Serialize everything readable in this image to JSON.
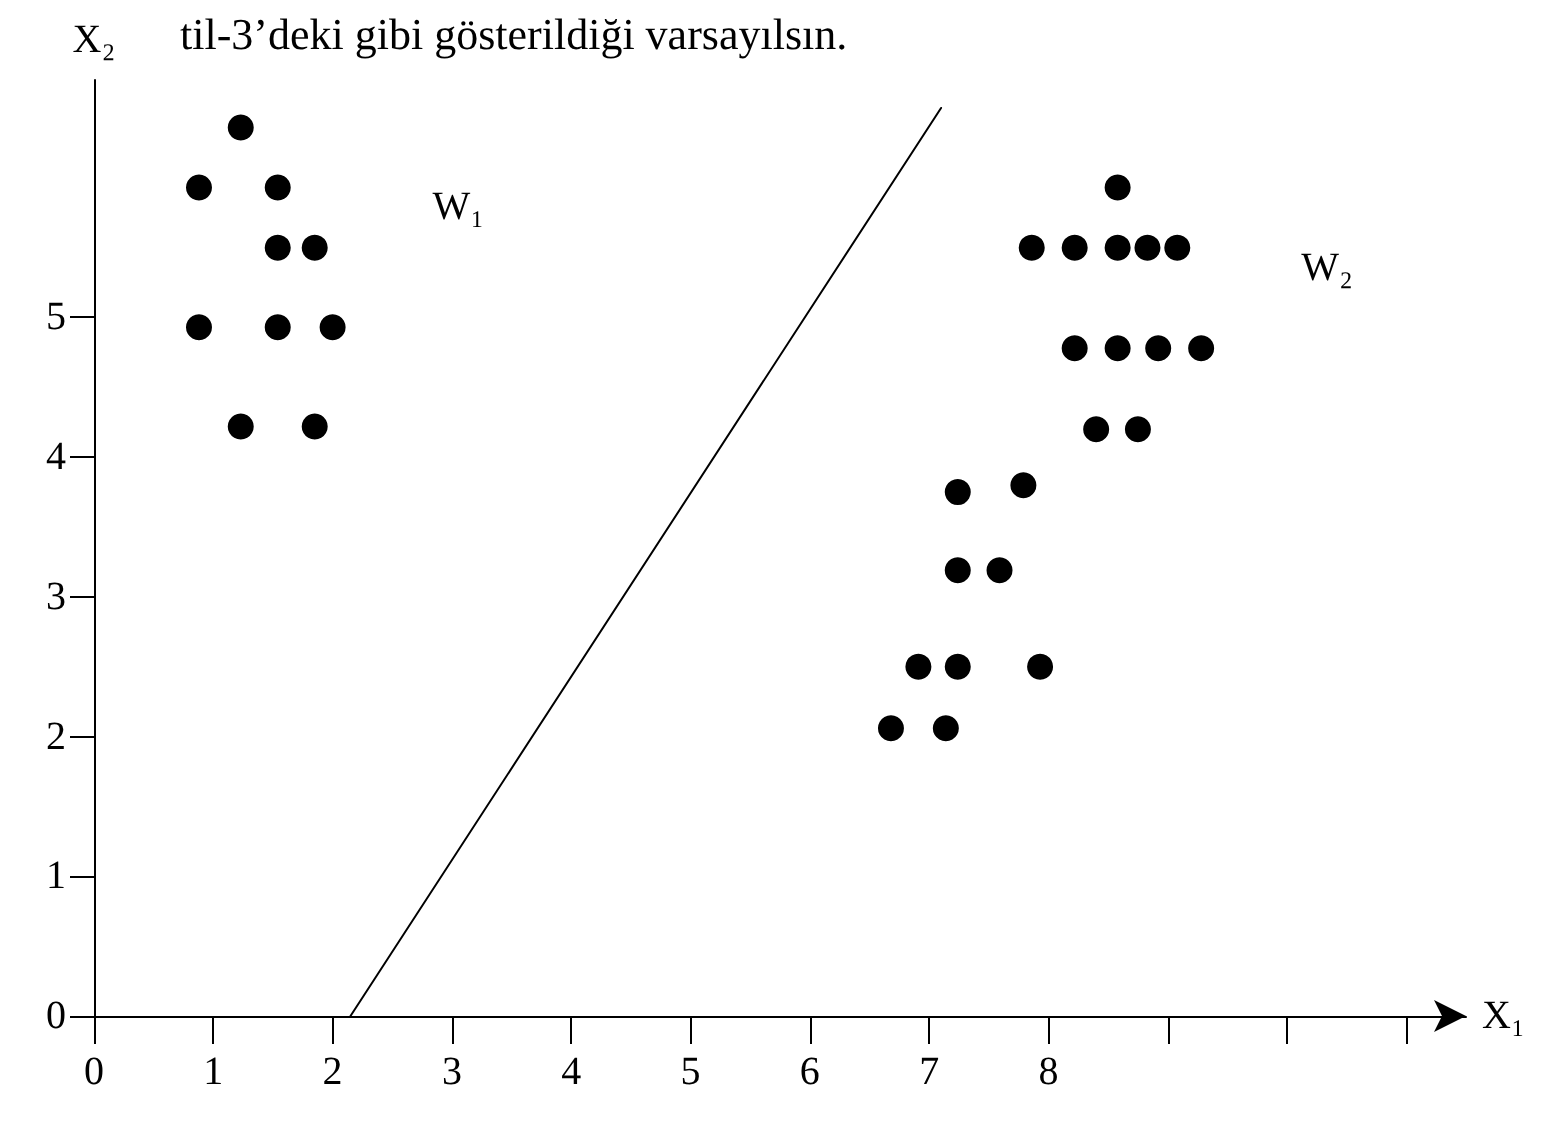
{
  "chart_data": {
    "type": "scatter",
    "xlabel": "X₁",
    "ylabel": "X₂",
    "annotations": [
      "til-3’deki gibi gösterildiği varsayılsın."
    ],
    "series": [
      {
        "name": "W₁",
        "color": "#000000",
        "x": [
          1.23,
          0.88,
          1.54,
          1.54,
          1.85,
          0.88,
          1.54,
          2.0,
          1.23,
          1.85
        ],
        "values": [
          6.36,
          5.93,
          5.93,
          5.5,
          5.5,
          4.93,
          4.93,
          4.93,
          4.22,
          4.22
        ]
      },
      {
        "name": "W₂",
        "color": "#000000",
        "x": [
          8.58,
          7.86,
          8.22,
          8.58,
          8.83,
          9.08,
          8.22,
          8.58,
          8.92,
          9.28,
          8.4,
          8.75,
          7.24,
          7.79,
          7.24,
          7.59,
          6.91,
          7.24,
          7.93,
          6.68,
          7.14
        ],
        "values": [
          5.93,
          5.5,
          5.5,
          5.5,
          5.5,
          5.5,
          4.78,
          4.78,
          4.78,
          4.78,
          4.2,
          4.2,
          3.75,
          3.8,
          3.19,
          3.19,
          2.5,
          2.5,
          2.5,
          2.06,
          2.06
        ]
      },
      {
        "type": "line",
        "color": "#000000",
        "marker": "none",
        "x": [
          2.15,
          7.1
        ],
        "values": [
          0,
          6.5
        ]
      }
    ],
    "marker": "circle",
    "grid": false,
    "xlim": [
      0,
      11.5
    ],
    "xticks": [
      0,
      1,
      2,
      3,
      4,
      5,
      6,
      7,
      8,
      {
        "value": 9,
        "label": null
      },
      {
        "value": 10,
        "label": null
      },
      {
        "value": 11,
        "label": null
      }
    ],
    "ylim": [
      0,
      6.7
    ],
    "yticks": [
      0,
      1,
      2,
      3,
      4,
      5
    ]
  }
}
